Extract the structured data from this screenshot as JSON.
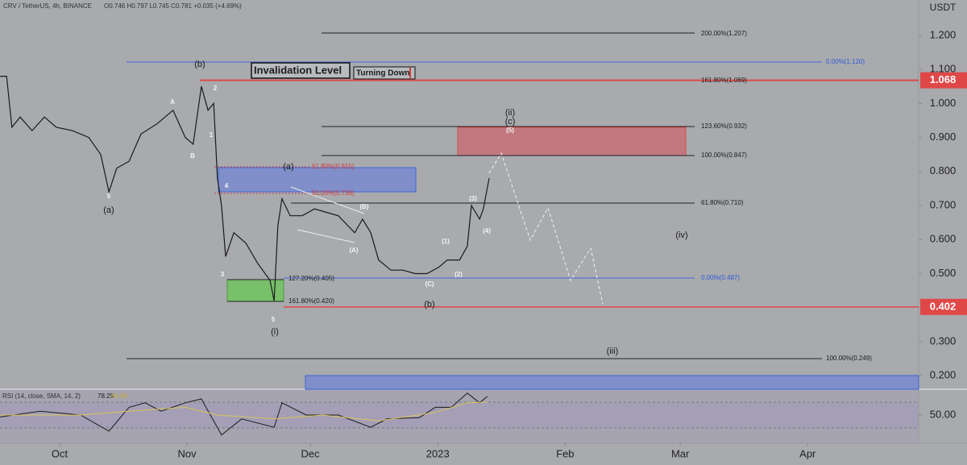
{
  "chart_data": [
    {
      "type": "line",
      "title": "CRV / TetherUS, 4h, BINANCE",
      "subtitle": "O0.746 H0.797 L0.745 C0.781 +0.035 (+4.69%)",
      "y_label": "USDT",
      "x": [
        -14.5,
        -12.9,
        -11.6,
        -9.6,
        -6.7,
        -3.7,
        -0.8,
        3.1,
        7.1,
        10,
        12,
        13.9,
        16.9,
        19.8,
        23.7,
        27.6,
        30.6,
        32.5,
        34.5,
        36.1,
        37.5,
        38.4,
        39.4,
        40.4,
        42.4,
        45.3,
        48.2,
        51.2,
        52.2,
        53.1,
        54.1,
        56.1,
        59,
        62,
        64.9,
        67.8,
        71.8,
        73.7,
        75.7,
        77.6,
        80.6,
        83.5,
        86.5,
        89.4,
        92.4,
        94.3,
        97.3,
        99.2,
        100.2,
        102.2,
        103.1,
        104.5
      ],
      "series": [
        {
          "color": "#1a1a1a",
          "values": [
            1.08,
            1.08,
            0.93,
            0.96,
            0.92,
            0.96,
            0.93,
            0.92,
            0.9,
            0.85,
            0.74,
            0.81,
            0.83,
            0.91,
            0.94,
            0.98,
            0.9,
            0.88,
            1.05,
            0.98,
            1.0,
            0.78,
            0.7,
            0.55,
            0.62,
            0.59,
            0.53,
            0.48,
            0.42,
            0.64,
            0.72,
            0.67,
            0.67,
            0.69,
            0.68,
            0.67,
            0.62,
            0.66,
            0.62,
            0.54,
            0.51,
            0.51,
            0.5,
            0.5,
            0.52,
            0.54,
            0.54,
            0.58,
            0.7,
            0.66,
            0.69,
            0.78
          ]
        }
      ],
      "xlim": [
        -14.5,
        209
      ],
      "xticks": [
        {
          "value": 0,
          "label": "Oct"
        },
        {
          "value": 31,
          "label": "Nov"
        },
        {
          "value": 61,
          "label": "Dec"
        },
        {
          "value": 92,
          "label": "2023"
        },
        {
          "value": 123,
          "label": "Feb"
        },
        {
          "value": 151,
          "label": "Mar"
        },
        {
          "value": 182,
          "label": "Apr"
        }
      ],
      "ylim": [
        0.16,
        1.304
      ],
      "yticks": [
        {
          "value": 1.2,
          "label": "1.200"
        },
        {
          "value": 1.1,
          "label": "1.100"
        },
        {
          "value": 1.0,
          "label": "1.000"
        },
        {
          "value": 0.9,
          "label": "0.900"
        },
        {
          "value": 0.8,
          "label": "0.800"
        },
        {
          "value": 0.7,
          "label": "0.700"
        },
        {
          "value": 0.6,
          "label": "0.600"
        },
        {
          "value": 0.5,
          "label": "0.500"
        },
        {
          "value": 0.4,
          "label": "0.400"
        },
        {
          "value": 0.3,
          "label": "0.300"
        },
        {
          "value": 0.2,
          "label": "0.200"
        }
      ],
      "price_labels": [
        {
          "value": 1.068,
          "color": "#e04848"
        },
        {
          "value": 0.402,
          "color": "#e04848"
        }
      ],
      "boxes": [
        "Invalidation Level",
        "Turning Down"
      ],
      "fib_labels": [
        {
          "text": "200.00%(1.207)",
          "color": "#1c1c1c"
        },
        {
          "text": "0.00%(1.120)",
          "color": "#2f5bd6"
        },
        {
          "text": "161.80%(1.069)",
          "color": "#1c1c1c"
        },
        {
          "text": "123.60%(0.932)",
          "color": "#1c1c1c"
        },
        {
          "text": "100.00%(0.847)",
          "color": "#1c1c1c"
        },
        {
          "text": "61.80%(0.710)",
          "color": "#1c1c1c"
        },
        {
          "text": "0.00%(0.487)",
          "color": "#2f5bd6"
        },
        {
          "text": "127.20%(0.405)",
          "color": "#1c1c1c"
        },
        {
          "text": "161.80%(0.420)",
          "color": "#1c1c1c"
        },
        {
          "text": "100.00%(0.249)",
          "color": "#1c1c1c"
        },
        {
          "text": "61.80%(0.815)",
          "color": "#d83a3a"
        },
        {
          "text": "50.00%(0.736)",
          "color": "#d83a3a"
        }
      ],
      "wave_labels": [
        "(b)",
        "A",
        "2",
        "1",
        "B",
        "5",
        "(a)",
        "4",
        "(a)",
        "3",
        "5",
        "(i)",
        "(B)",
        "(A)",
        "(C)",
        "(b)",
        "(1)",
        "(2)",
        "(3)",
        "(4)",
        "(5)",
        "(c)",
        "(ii)",
        "(iv)",
        "(iii)"
      ]
    },
    {
      "type": "line",
      "title": "RSI (14, close, SMA, 14, 2)",
      "rsi_value": 78.25,
      "sma_value": 66.99,
      "x": [
        -14.5,
        -4.7,
        5.1,
        12,
        16.9,
        20.8,
        24.7,
        30.6,
        34.5,
        39.4,
        44.3,
        52.2,
        54.1,
        60,
        67.8,
        75.7,
        79.6,
        87.5,
        91.4,
        95.3,
        99.2,
        102.2,
        104.1
      ],
      "series": [
        {
          "color": "#1a1a1a",
          "values": [
            47,
            56,
            50,
            25,
            62,
            69,
            56,
            69,
            75,
            19,
            44,
            31,
            69,
            50,
            50,
            31,
            44,
            46,
            62,
            62,
            84,
            69,
            79
          ]
        },
        {
          "color": "#d9c35a",
          "x": [
            -14.5,
            5.1,
            16.9,
            30.6,
            38.4,
            52.2,
            64,
            77.6,
            91.4,
            99.2,
            104.1
          ],
          "values": [
            50,
            50,
            56,
            62,
            50,
            44,
            50,
            41,
            54,
            69,
            70
          ]
        }
      ],
      "ylim": [
        6.25,
        90
      ],
      "yticks": [
        {
          "value": 50,
          "label": "50.00"
        }
      ]
    }
  ]
}
